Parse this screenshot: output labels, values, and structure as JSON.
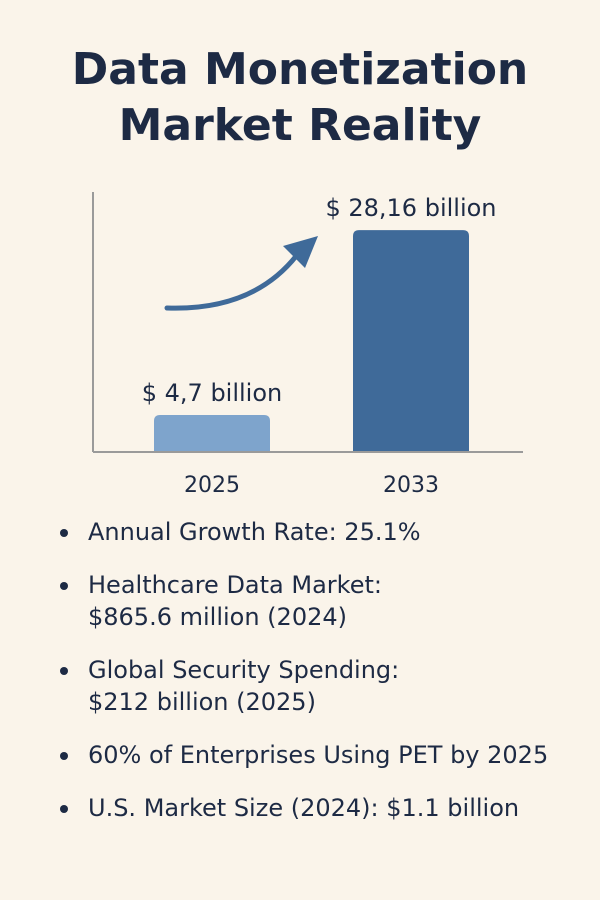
{
  "title": {
    "line1": "Data Monetization",
    "line2": "Market Reality"
  },
  "chart_data": {
    "type": "bar",
    "categories": [
      "2025",
      "2033"
    ],
    "values": [
      4.7,
      28.16
    ],
    "data_labels": [
      "$ 4,7 billion",
      "$ 28,16 billion"
    ],
    "ylim": [
      0,
      33
    ],
    "grid": false,
    "annotations": [
      "upward-growth-arrow"
    ],
    "colors": [
      "#7ea4cc",
      "#3f6a99"
    ],
    "axis_color": "#9a9a9a"
  },
  "bullets": [
    {
      "lines": [
        "Annual Growth Rate: 25.1%"
      ]
    },
    {
      "lines": [
        "Healthcare Data Market:",
        "$865.6 million (2024)"
      ]
    },
    {
      "lines": [
        "Global Security Spending:",
        "$212 billion (2025)"
      ]
    },
    {
      "lines": [
        "60% of Enterprises Using PET by 2025"
      ]
    },
    {
      "lines": [
        "U.S. Market Size (2024): $1.1 billion"
      ]
    }
  ]
}
